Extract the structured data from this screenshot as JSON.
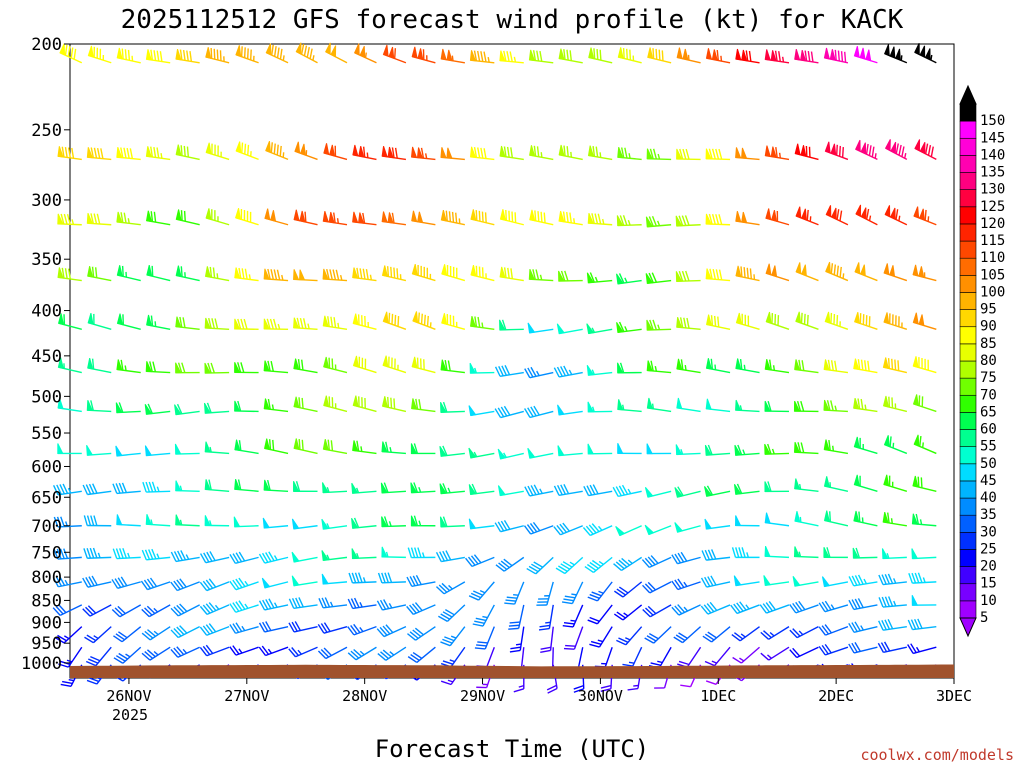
{
  "chart_data": {
    "type": "wind-barb time-height profile",
    "title": "2025112512 GFS forecast wind profile (kt) for KACK",
    "xlabel": "Forecast Time (UTC)",
    "ylabel": "",
    "credit": "coolwx.com/models",
    "y_ticks": [
      "200",
      "250",
      "300",
      "350",
      "400",
      "450",
      "500",
      "550",
      "600",
      "650",
      "700",
      "750",
      "800",
      "850",
      "900",
      "950",
      "1000"
    ],
    "y_values": [
      200,
      250,
      300,
      350,
      400,
      450,
      500,
      550,
      600,
      650,
      700,
      750,
      800,
      850,
      900,
      950,
      1000
    ],
    "y_scale": "log (pressure, hPa)",
    "x_ticks": [
      "26NOV",
      "27NOV",
      "28NOV",
      "29NOV",
      "30NOV",
      "1DEC",
      "2DEC",
      "3DEC"
    ],
    "x_year_label": "2025",
    "x_range_days": [
      -0.5,
      7.0
    ],
    "grid": false,
    "colorbar": {
      "position": "right",
      "labels": [
        "5",
        "10",
        "15",
        "20",
        "25",
        "30",
        "35",
        "40",
        "45",
        "50",
        "55",
        "60",
        "65",
        "70",
        "75",
        "80",
        "85",
        "90",
        "95",
        "100",
        "105",
        "110",
        "115",
        "120",
        "125",
        "130",
        "135",
        "140",
        "145",
        "150"
      ],
      "colors": [
        "#a000ff",
        "#7800ff",
        "#4000ff",
        "#0000ff",
        "#0030ff",
        "#0060ff",
        "#008cff",
        "#00b4ff",
        "#00dcff",
        "#00ffd0",
        "#00ff90",
        "#00ff50",
        "#30ff00",
        "#70ff00",
        "#b0ff00",
        "#e8ff00",
        "#ffff00",
        "#ffd800",
        "#ffb400",
        "#ff9000",
        "#ff6c00",
        "#ff4800",
        "#ff2400",
        "#ff0000",
        "#ff0040",
        "#ff0080",
        "#ff00b0",
        "#ff00d8",
        "#ff00ff",
        "#000000"
      ]
    },
    "series": [
      {
        "level": 210,
        "days": [
          -0.5,
          0.5,
          1.5,
          2.5,
          3.5,
          4.5,
          5.5,
          6.5
        ],
        "speeds": [
          95,
          85,
          100,
          110,
          85,
          80,
          130,
          150
        ],
        "dirs": [
          295,
          285,
          290,
          290,
          280,
          275,
          285,
          290
        ]
      },
      {
        "level": 270,
        "days": [
          -0.5,
          0.5,
          1.5,
          2.5,
          3.5,
          4.5,
          5.5,
          6.5
        ],
        "speeds": [
          95,
          75,
          105,
          115,
          80,
          65,
          115,
          130
        ],
        "dirs": [
          285,
          280,
          285,
          285,
          275,
          270,
          285,
          290
        ]
      },
      {
        "level": 320,
        "days": [
          -0.5,
          0.5,
          1.5,
          2.5,
          3.5,
          4.5,
          5.5,
          6.5
        ],
        "speeds": [
          80,
          70,
          105,
          110,
          85,
          75,
          105,
          120
        ],
        "dirs": [
          280,
          275,
          285,
          285,
          275,
          270,
          285,
          290
        ]
      },
      {
        "level": 370,
        "days": [
          -0.5,
          0.5,
          1.5,
          2.5,
          3.5,
          4.5,
          5.5,
          6.5
        ],
        "speeds": [
          75,
          65,
          95,
          100,
          70,
          70,
          95,
          105
        ],
        "dirs": [
          280,
          275,
          280,
          285,
          270,
          270,
          280,
          290
        ]
      },
      {
        "level": 420,
        "days": [
          -0.5,
          0.5,
          1.5,
          2.5,
          3.5,
          4.5,
          5.5,
          6.5
        ],
        "speeds": [
          65,
          65,
          85,
          95,
          50,
          70,
          80,
          95
        ],
        "dirs": [
          280,
          275,
          280,
          285,
          265,
          270,
          280,
          295
        ]
      },
      {
        "level": 470,
        "days": [
          -0.5,
          0.5,
          1.5,
          2.5,
          3.5,
          4.5,
          5.5,
          6.5
        ],
        "speeds": [
          60,
          65,
          75,
          80,
          40,
          60,
          70,
          85
        ],
        "dirs": [
          275,
          275,
          280,
          280,
          265,
          270,
          275,
          290
        ]
      },
      {
        "level": 520,
        "days": [
          -0.5,
          0.5,
          1.5,
          2.5,
          3.5,
          4.5,
          5.5,
          6.5
        ],
        "speeds": [
          50,
          60,
          70,
          75,
          40,
          55,
          60,
          75
        ],
        "dirs": [
          275,
          270,
          275,
          280,
          260,
          270,
          275,
          285
        ]
      },
      {
        "level": 580,
        "days": [
          -0.5,
          0.5,
          1.5,
          2.5,
          3.5,
          4.5,
          5.5,
          6.5
        ],
        "speeds": [
          45,
          55,
          65,
          70,
          45,
          55,
          60,
          70
        ],
        "dirs": [
          275,
          270,
          275,
          280,
          255,
          265,
          275,
          285
        ]
      },
      {
        "level": 640,
        "days": [
          -0.5,
          0.5,
          1.5,
          2.5,
          3.5,
          4.5,
          5.5,
          6.5
        ],
        "speeds": [
          45,
          50,
          60,
          65,
          45,
          50,
          60,
          65
        ],
        "dirs": [
          270,
          265,
          270,
          275,
          250,
          260,
          270,
          280
        ]
      },
      {
        "level": 700,
        "days": [
          -0.5,
          0.5,
          1.5,
          2.5,
          3.5,
          4.5,
          5.5,
          6.5
        ],
        "speeds": [
          40,
          50,
          55,
          60,
          45,
          45,
          55,
          60
        ],
        "dirs": [
          270,
          265,
          270,
          270,
          245,
          255,
          270,
          280
        ]
      },
      {
        "level": 760,
        "days": [
          -0.5,
          0.5,
          1.5,
          2.5,
          3.5,
          4.5,
          5.5,
          6.5
        ],
        "speeds": [
          35,
          45,
          50,
          50,
          40,
          40,
          50,
          55
        ],
        "dirs": [
          260,
          260,
          265,
          265,
          230,
          245,
          265,
          275
        ]
      },
      {
        "level": 810,
        "days": [
          -0.5,
          0.5,
          1.5,
          2.5,
          3.5,
          4.5,
          5.5,
          6.5
        ],
        "speeds": [
          30,
          45,
          45,
          45,
          30,
          35,
          45,
          50
        ],
        "dirs": [
          250,
          255,
          260,
          260,
          200,
          235,
          260,
          270
        ]
      },
      {
        "level": 860,
        "days": [
          -0.5,
          0.5,
          1.5,
          2.5,
          3.5,
          4.5,
          5.5,
          6.5
        ],
        "speeds": [
          30,
          40,
          40,
          40,
          25,
          30,
          40,
          45
        ],
        "dirs": [
          240,
          250,
          255,
          255,
          190,
          230,
          255,
          265
        ]
      },
      {
        "level": 910,
        "days": [
          -0.5,
          0.5,
          1.5,
          2.5,
          3.5,
          4.5,
          5.5,
          6.5
        ],
        "speeds": [
          30,
          35,
          35,
          35,
          25,
          25,
          30,
          35
        ],
        "dirs": [
          230,
          245,
          250,
          250,
          180,
          220,
          245,
          255
        ]
      },
      {
        "level": 960,
        "days": [
          -0.5,
          0.5,
          1.5,
          2.5,
          3.5,
          4.5,
          5.5,
          6.5
        ],
        "speeds": [
          25,
          30,
          30,
          30,
          20,
          20,
          20,
          25
        ],
        "dirs": [
          220,
          240,
          245,
          245,
          170,
          210,
          240,
          250
        ]
      },
      {
        "level": 1005,
        "days": [
          -0.5,
          0.5,
          1.5,
          2.5,
          3.5,
          4.5,
          5.5,
          6.5
        ],
        "speeds": [
          20,
          25,
          25,
          25,
          15,
          15,
          15,
          20
        ],
        "dirs": [
          210,
          235,
          240,
          240,
          160,
          200,
          235,
          245
        ]
      }
    ],
    "surface_pressure": {
      "days": [
        -0.5,
        0.5,
        1.5,
        2.5,
        3.5,
        4.5,
        5.5,
        6.5,
        7.0
      ],
      "values": [
        1008,
        1006,
        1005,
        1006,
        1009,
        1008,
        1006,
        1005,
        1004
      ],
      "color": "#a0522d"
    }
  }
}
